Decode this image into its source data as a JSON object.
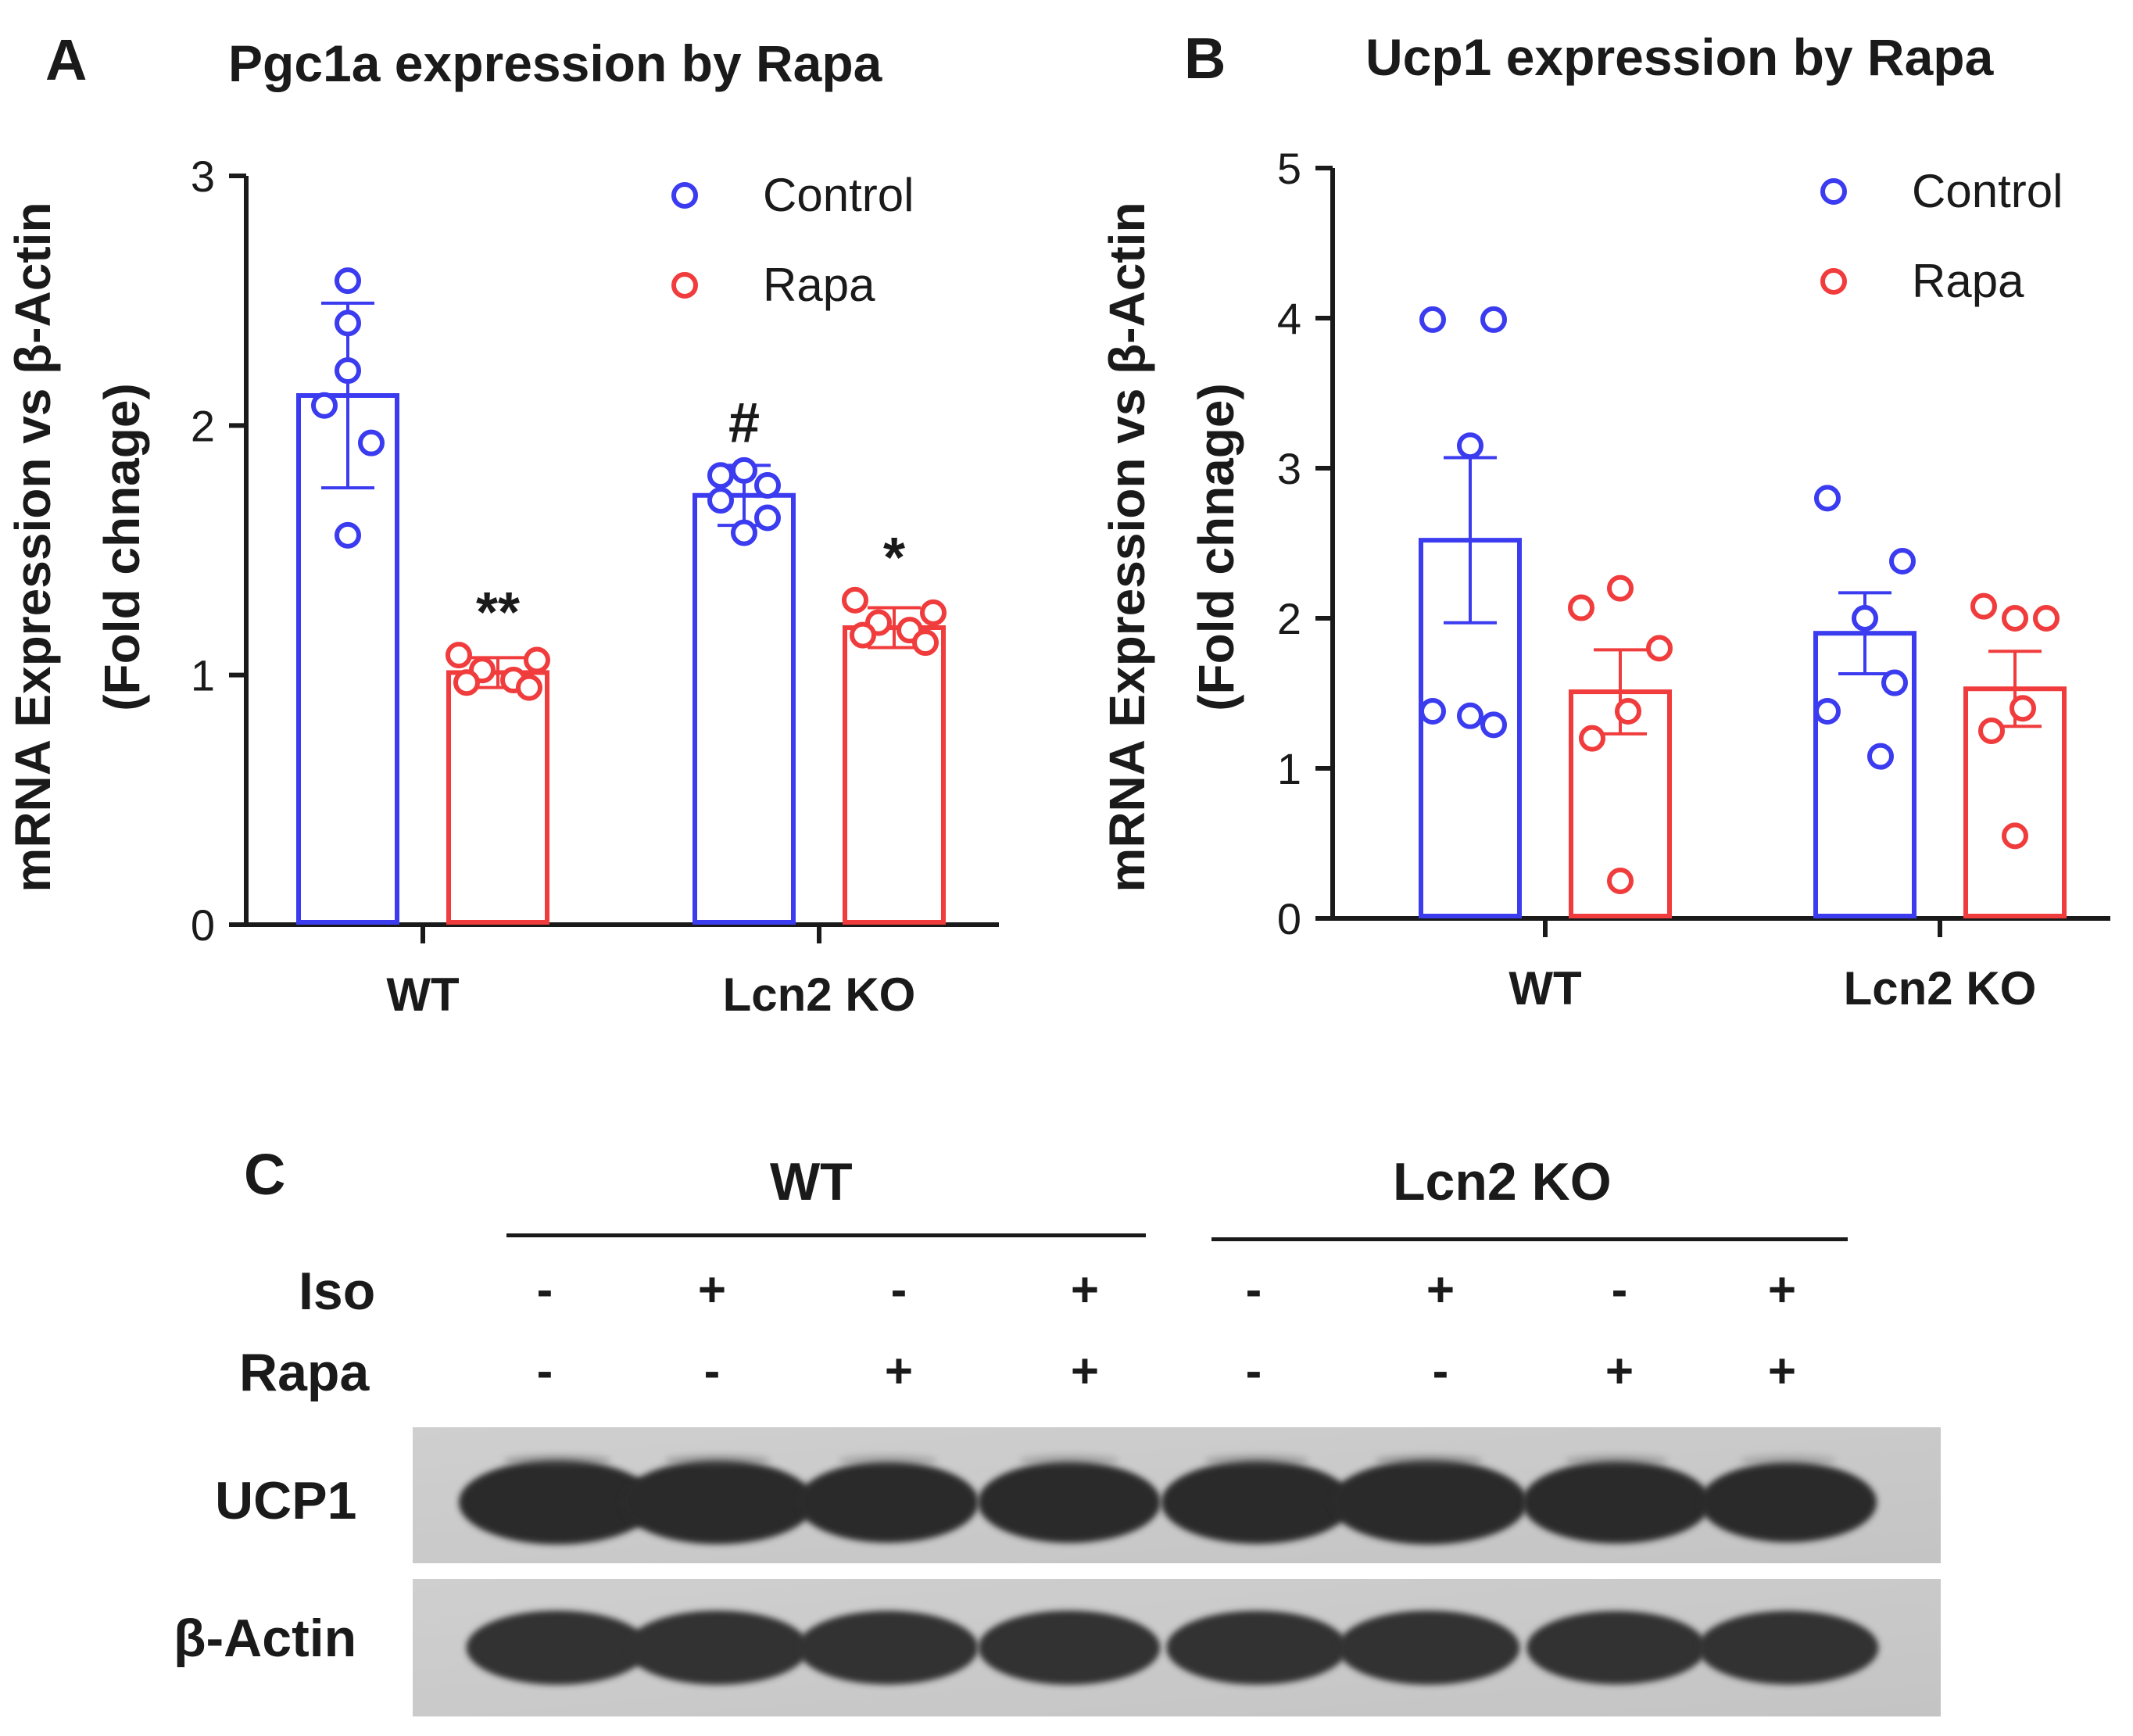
{
  "panels": {
    "a": {
      "letter": "A"
    },
    "b": {
      "letter": "B"
    },
    "c": {
      "letter": "C"
    }
  },
  "colors": {
    "control": "#3b3bf0",
    "rapa": "#f03c3c",
    "axis": "#1a1a1a"
  },
  "chart_data": [
    {
      "type": "bar",
      "title": "Pgc1a expression by Rapa",
      "ylabel_line1": "mRNA Expression vs β-Actin",
      "ylabel_line2": "(Fold chnage)",
      "categories": [
        "WT",
        "Lcn2 KO"
      ],
      "ylim": [
        0,
        3
      ],
      "yticks": [
        "0",
        "1",
        "2",
        "3"
      ],
      "legend": [
        "Control",
        "Rapa"
      ],
      "legend_position": "top-right",
      "series": [
        {
          "name": "Control",
          "values": [
            2.12,
            1.72
          ],
          "errors": [
            0.37,
            0.12
          ],
          "points": [
            [
              2.58,
              2.41,
              2.22,
              2.08,
              1.93,
              1.56
            ],
            [
              1.82,
              1.8,
              1.76,
              1.7,
              1.63,
              1.57
            ]
          ],
          "annotations": [
            "",
            "#"
          ]
        },
        {
          "name": "Rapa",
          "values": [
            1.01,
            1.19
          ],
          "errors": [
            0.06,
            0.08
          ],
          "points": [
            [
              1.08,
              1.06,
              1.02,
              0.98,
              0.97,
              0.95
            ],
            [
              1.3,
              1.25,
              1.21,
              1.18,
              1.16,
              1.13
            ]
          ],
          "annotations": [
            "**",
            "*"
          ]
        }
      ]
    },
    {
      "type": "bar",
      "title": "Ucp1 expression by Rapa",
      "ylabel_line1": "mRNA Expression vs β-Actin",
      "ylabel_line2": "(Fold chnage)",
      "categories": [
        "WT",
        "Lcn2 KO"
      ],
      "ylim": [
        0,
        5
      ],
      "yticks": [
        "0",
        "1",
        "2",
        "3",
        "4",
        "5"
      ],
      "legend": [
        "Control",
        "Rapa"
      ],
      "legend_position": "top-right",
      "series": [
        {
          "name": "Control",
          "values": [
            2.52,
            1.9
          ],
          "errors": [
            0.55,
            0.27
          ],
          "points": [
            [
              3.99,
              3.99,
              3.15,
              1.38,
              1.35,
              1.29
            ],
            [
              2.8,
              2.38,
              2.0,
              1.57,
              1.38,
              1.08
            ]
          ],
          "annotations": [
            "",
            ""
          ]
        },
        {
          "name": "Rapa",
          "values": [
            1.51,
            1.53
          ],
          "errors": [
            0.28,
            0.25
          ],
          "points": [
            [
              2.2,
              2.07,
              1.8,
              1.38,
              1.2,
              0.25
            ],
            [
              2.08,
              2.0,
              2.0,
              1.4,
              1.25,
              0.55
            ]
          ],
          "annotations": [
            "",
            ""
          ]
        }
      ]
    }
  ],
  "western_blot": {
    "groups": [
      "WT",
      "Lcn2 KO"
    ],
    "row_labels": [
      "Iso",
      "Rapa"
    ],
    "iso": [
      "-",
      "+",
      "-",
      "+",
      "-",
      "+",
      "-",
      "+"
    ],
    "rapa": [
      "-",
      "-",
      "+",
      "+",
      "-",
      "-",
      "+",
      "+"
    ],
    "bands": [
      "UCP1",
      "β-Actin"
    ],
    "ucp1_intensity": [
      1.0,
      0.96,
      0.78,
      0.8,
      0.92,
      1.0,
      0.88,
      0.72
    ],
    "actin_intensity": [
      0.95,
      0.95,
      0.92,
      0.95,
      0.93,
      0.95,
      0.9,
      0.92
    ]
  }
}
